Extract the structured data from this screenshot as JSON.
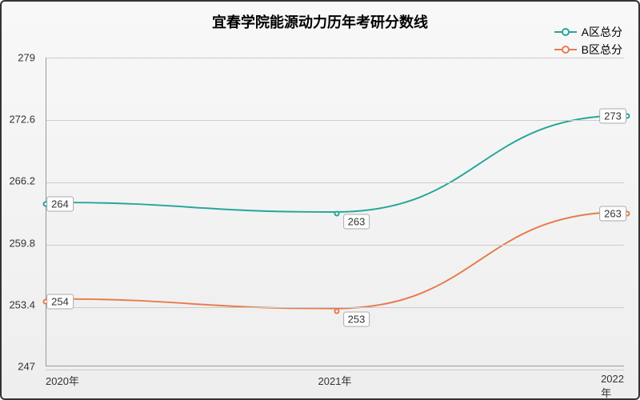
{
  "chart": {
    "type": "line",
    "title": "宜春学院能源动力历年考研分数线",
    "title_fontsize": 18,
    "background_gradient": [
      "#f8f8f8",
      "#eeeeee"
    ],
    "border_color": "#333333",
    "grid_color": "#cccccc",
    "axis_color": "#999999",
    "text_color": "#333333",
    "x_labels": [
      "2020年",
      "2021年",
      "2022年"
    ],
    "ylim": [
      247,
      279
    ],
    "yticks": [
      247,
      253.4,
      259.8,
      266.2,
      272.6,
      279
    ],
    "series": [
      {
        "name": "A区总分",
        "color": "#26a69a",
        "values": [
          264,
          263,
          273
        ],
        "line_width": 2,
        "marker": "circle"
      },
      {
        "name": "B区总分",
        "color": "#e87b4c",
        "values": [
          254,
          253,
          263
        ],
        "line_width": 2,
        "marker": "circle"
      }
    ],
    "label_box": {
      "bg": "#ffffff",
      "border": "#aaaaaa",
      "fontsize": 13
    },
    "legend_position": "top-right"
  }
}
